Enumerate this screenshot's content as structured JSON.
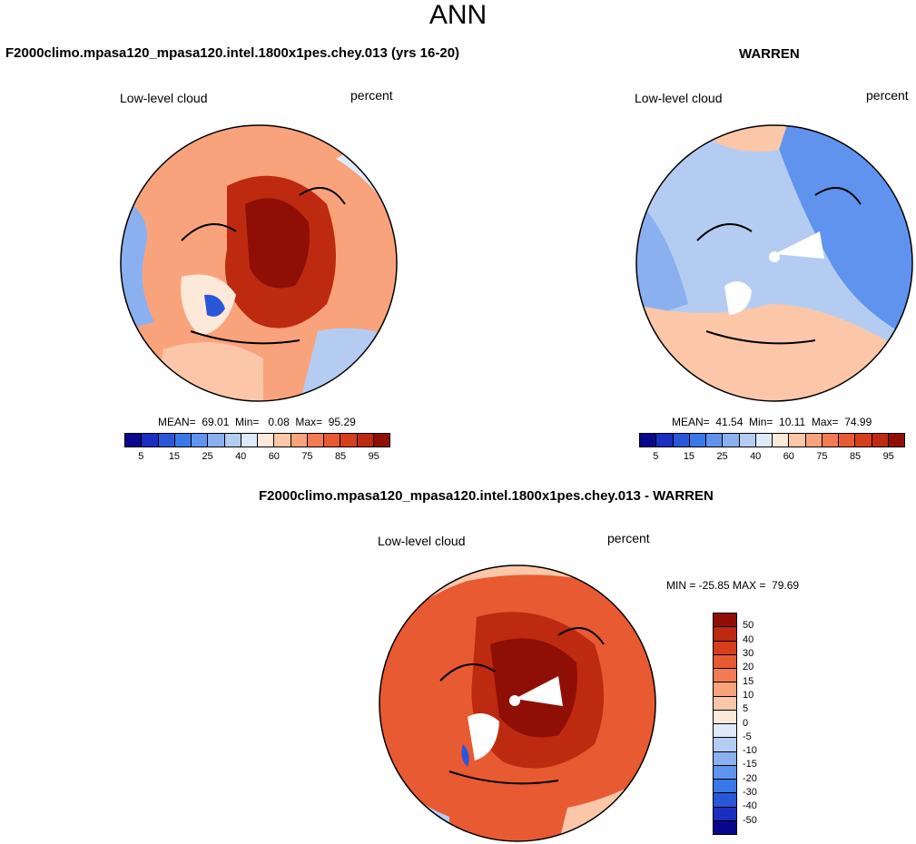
{
  "figure_title": "ANN",
  "chart_data": [
    {
      "type": "heatmap",
      "projection": "north-polar-stereographic",
      "title": "F2000climo.mpasa120_mpasa120.intel.1800x1pes.chey.013 (yrs 16-20)",
      "left_label": "Low-level cloud",
      "right_label": "percent",
      "stats": {
        "mean": "69.01",
        "min": "0.08",
        "max": "95.29"
      },
      "stats_text": "MEAN=  69.01  Min=   0.08  Max=  95.29",
      "colorbar": {
        "levels": [
          5,
          10,
          15,
          20,
          25,
          30,
          40,
          50,
          60,
          70,
          75,
          80,
          85,
          90,
          95
        ],
        "tick_labels": [
          "5",
          "15",
          "25",
          "40",
          "60",
          "75",
          "85",
          "95"
        ],
        "colors": [
          "#08088c",
          "#1a2ebf",
          "#2a57d8",
          "#3a78e8",
          "#5f93ee",
          "#8bb0f0",
          "#b5ccf2",
          "#deeafa",
          "#fde9d9",
          "#fcc7a8",
          "#f9a37c",
          "#f37b53",
          "#e85a32",
          "#d63f1b",
          "#bd2a10",
          "#8f0f07"
        ]
      },
      "field_description": "high cloud fraction (70-95%) over Arctic Ocean, lower values over Greenland and continents"
    },
    {
      "type": "heatmap",
      "projection": "north-polar-stereographic",
      "title": "WARREN",
      "left_label": "Low-level cloud",
      "right_label": "percent",
      "stats": {
        "mean": "41.54",
        "min": "10.11",
        "max": "74.99"
      },
      "stats_text": "MEAN=  41.54  Min=  10.11  Max=  74.99",
      "colorbar": {
        "levels": [
          5,
          10,
          15,
          20,
          25,
          30,
          40,
          50,
          60,
          70,
          75,
          80,
          85,
          90,
          95
        ],
        "tick_labels": [
          "5",
          "15",
          "25",
          "40",
          "60",
          "75",
          "85",
          "95"
        ],
        "colors": [
          "#08088c",
          "#1a2ebf",
          "#2a57d8",
          "#3a78e8",
          "#5f93ee",
          "#8bb0f0",
          "#b5ccf2",
          "#deeafa",
          "#fde9d9",
          "#fcc7a8",
          "#f9a37c",
          "#f37b53",
          "#e85a32",
          "#d63f1b",
          "#bd2a10",
          "#8f0f07"
        ]
      },
      "field_description": "mostly 25-50% cloud, lower over Siberia/Pacific side, moderate over Atlantic"
    },
    {
      "type": "heatmap",
      "projection": "north-polar-stereographic",
      "title": "F2000climo.mpasa120_mpasa120.intel.1800x1pes.chey.013 - WARREN",
      "left_label": "Low-level cloud",
      "right_label": "percent",
      "stats": {
        "min": "-25.85",
        "max": "79.69"
      },
      "stats_text": "MIN = -25.85 MAX =  79.69",
      "colorbar": {
        "levels": [
          -50,
          -40,
          -30,
          -20,
          -15,
          -10,
          -5,
          0,
          5,
          10,
          15,
          20,
          30,
          40,
          50
        ],
        "tick_labels": [
          "50",
          "40",
          "30",
          "20",
          "15",
          "10",
          "5",
          "0",
          "-5",
          "-10",
          "-15",
          "-20",
          "-30",
          "-40",
          "-50"
        ],
        "colors": [
          "#8f0f07",
          "#bd2a10",
          "#d63f1b",
          "#e85a32",
          "#f37b53",
          "#f9a37c",
          "#fcc7a8",
          "#fde9d9",
          "#deeafa",
          "#b5ccf2",
          "#8bb0f0",
          "#5f93ee",
          "#3a78e8",
          "#2a57d8",
          "#1a2ebf",
          "#08088c"
        ]
      },
      "field_description": "positive differences (20-50+) over most of Arctic, near zero to negative in outer margins"
    }
  ]
}
